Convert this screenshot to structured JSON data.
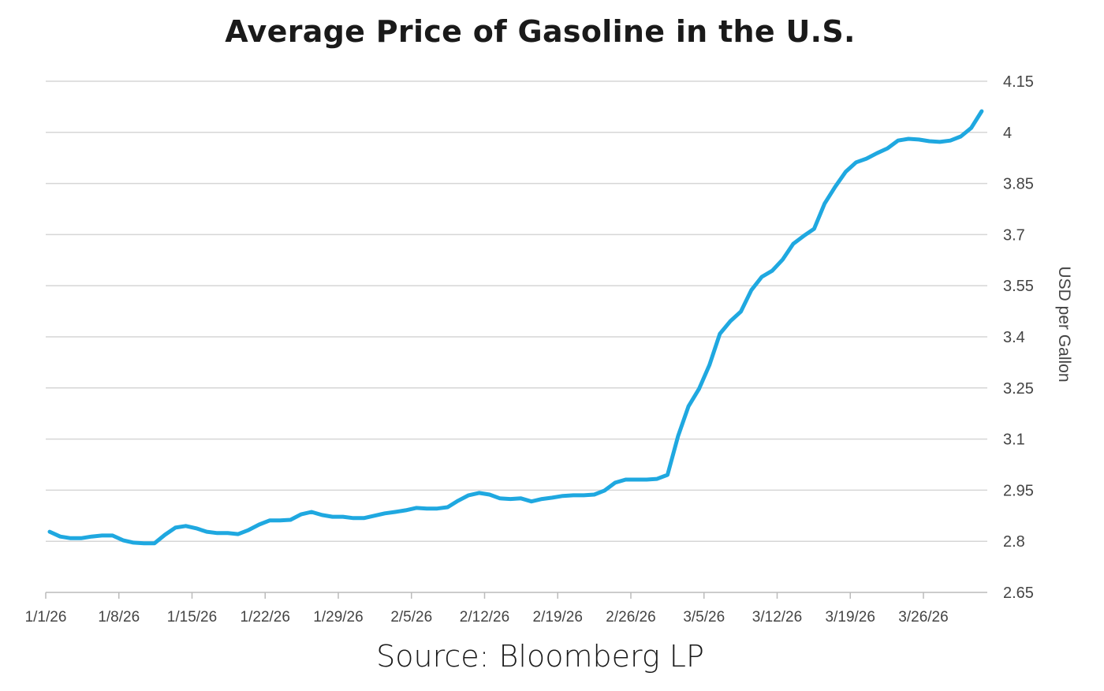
{
  "chart_data": {
    "type": "line",
    "title": "Average Price of Gasoline in the U.S.",
    "source": "Source: Bloomberg LP",
    "ylabel": "USD per Gallon",
    "xlabel": "",
    "ylim": [
      2.65,
      4.15
    ],
    "yticks": [
      "4.15",
      "4",
      "3.85",
      "3.7",
      "3.55",
      "3.4",
      "3.25",
      "3.1",
      "2.95",
      "2.8",
      "2.65"
    ],
    "xticks": [
      "1/1/26",
      "1/8/26",
      "1/15/26",
      "1/22/26",
      "1/29/26",
      "2/5/26",
      "2/12/26",
      "2/19/26",
      "2/26/26",
      "3/5/26",
      "3/12/26",
      "3/19/26",
      "3/26/26"
    ],
    "grid": true,
    "y_axis_side": "right",
    "line_color": "#1fa8e0",
    "x": [
      "1/1/26",
      "1/2/26",
      "1/3/26",
      "1/4/26",
      "1/5/26",
      "1/6/26",
      "1/7/26",
      "1/8/26",
      "1/9/26",
      "1/10/26",
      "1/11/26",
      "1/12/26",
      "1/13/26",
      "1/14/26",
      "1/15/26",
      "1/16/26",
      "1/17/26",
      "1/18/26",
      "1/19/26",
      "1/20/26",
      "1/21/26",
      "1/22/26",
      "1/23/26",
      "1/24/26",
      "1/25/26",
      "1/26/26",
      "1/27/26",
      "1/28/26",
      "1/29/26",
      "1/30/26",
      "1/31/26",
      "2/1/26",
      "2/2/26",
      "2/3/26",
      "2/4/26",
      "2/5/26",
      "2/6/26",
      "2/7/26",
      "2/8/26",
      "2/9/26",
      "2/10/26",
      "2/11/26",
      "2/12/26",
      "2/13/26",
      "2/14/26",
      "2/15/26",
      "2/16/26",
      "2/17/26",
      "2/18/26",
      "2/19/26",
      "2/20/26",
      "2/21/26",
      "2/22/26",
      "2/23/26",
      "2/24/26",
      "2/25/26",
      "2/26/26",
      "2/27/26",
      "2/28/26",
      "3/1/26",
      "3/2/26",
      "3/3/26",
      "3/4/26",
      "3/5/26",
      "3/6/26",
      "3/7/26",
      "3/8/26",
      "3/9/26",
      "3/10/26",
      "3/11/26",
      "3/12/26",
      "3/13/26",
      "3/14/26",
      "3/15/26",
      "3/16/26",
      "3/17/26",
      "3/18/26",
      "3/19/26",
      "3/20/26",
      "3/21/26",
      "3/22/26",
      "3/23/26",
      "3/24/26",
      "3/25/26",
      "3/26/26",
      "3/27/26",
      "3/28/26",
      "3/29/26",
      "3/30/26",
      "3/31/26"
    ],
    "series": [
      {
        "values": [
          2.828,
          2.814,
          2.809,
          2.809,
          2.814,
          2.817,
          2.817,
          2.803,
          2.796,
          2.794,
          2.794,
          2.819,
          2.84,
          2.845,
          2.838,
          2.828,
          2.824,
          2.824,
          2.821,
          2.833,
          2.849,
          2.861,
          2.861,
          2.863,
          2.879,
          2.886,
          2.877,
          2.872,
          2.872,
          2.868,
          2.868,
          2.875,
          2.882,
          2.886,
          2.891,
          2.898,
          2.896,
          2.896,
          2.9,
          2.919,
          2.935,
          2.942,
          2.937,
          2.926,
          2.924,
          2.926,
          2.917,
          2.924,
          2.928,
          2.933,
          2.935,
          2.935,
          2.937,
          2.949,
          2.972,
          2.981,
          2.981,
          2.981,
          2.983,
          2.995,
          3.108,
          3.196,
          3.247,
          3.317,
          3.409,
          3.446,
          3.474,
          3.537,
          3.576,
          3.594,
          3.627,
          3.673,
          3.696,
          3.717,
          3.791,
          3.84,
          3.884,
          3.912,
          3.923,
          3.939,
          3.953,
          3.976,
          3.981,
          3.979,
          3.974,
          3.972,
          3.976,
          3.988,
          4.013,
          4.062
        ]
      }
    ]
  }
}
